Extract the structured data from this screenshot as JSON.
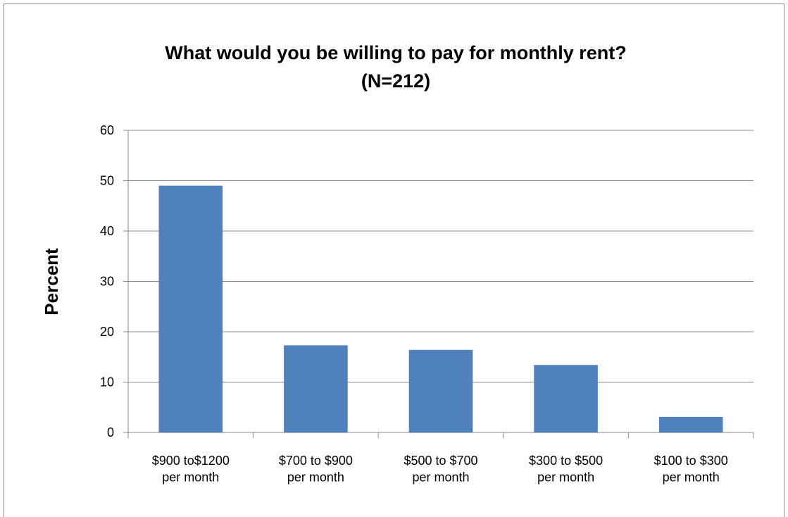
{
  "chart_data": {
    "type": "bar",
    "title": "What would you be willing to pay for monthly rent?",
    "subtitle": "(N=212)",
    "y_label": "Percent",
    "categories": [
      "$900 to$1200\nper month",
      "$700 to $900\nper month",
      "$500 to $700\nper month",
      "$300 to $500\nper month",
      "$100 to $300\nper month"
    ],
    "values": [
      49,
      17.3,
      16.4,
      13.4,
      3.1
    ],
    "color": "#4f81bd",
    "ylim": [
      0,
      60
    ],
    "yticks": [
      0,
      10,
      20,
      30,
      40,
      50,
      60
    ],
    "grid": true
  }
}
